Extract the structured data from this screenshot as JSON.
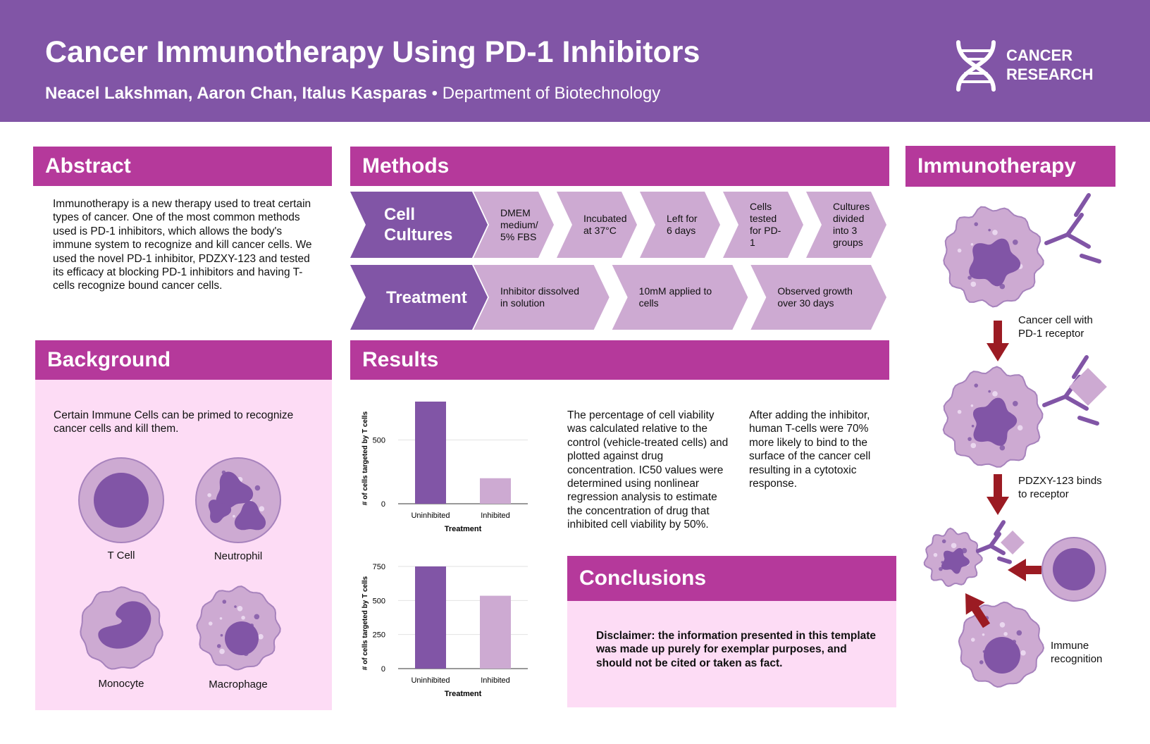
{
  "header": {
    "title": "Cancer Immunotherapy Using PD-1 Inhibitors",
    "authors": "Neacel Lakshman, Aaron Chan, Italus Kasparas",
    "separator": "•",
    "department": "Department of Biotechnology",
    "logo": [
      "CANCER",
      "RESEARCH"
    ]
  },
  "abstract": {
    "heading": "Abstract",
    "text": "Immunotherapy is a new therapy used to treat certain types of cancer. One of the most common methods used is PD-1 inhibitors, which allows the body's immune system to recognize and kill cancer cells. We used the novel PD-1 inhibitor, PDZXY-123 and tested its efficacy at blocking PD-1 inhibitors and having T-cells recognize bound cancer cells."
  },
  "methods": {
    "heading": "Methods",
    "rows": [
      {
        "label": "Cell Cultures",
        "steps": [
          "DMEM medium/ 5% FBS",
          "Incubated at 37°C",
          "Left for 6 days",
          "Cells tested for PD-1",
          "Cultures divided into 3 groups"
        ]
      },
      {
        "label": "Treatment",
        "steps": [
          "Inhibitor dissolved in solution",
          "10mM applied to cells",
          "Observed growth over 30 days"
        ]
      }
    ]
  },
  "background": {
    "heading": "Background",
    "text": "Certain Immune Cells can be primed to recognize cancer cells and kill them.",
    "cells": [
      "T Cell",
      "Neutrophil",
      "Monocyte",
      "Macrophage"
    ]
  },
  "results": {
    "heading": "Results",
    "paragraphs": [
      "The percentage of cell viability was calculated relative to the control (vehicle-treated cells) and plotted against drug concentration. IC50 values were determined using nonlinear regression analysis to estimate the concentration of drug that inhibited cell viability by 50%.",
      "After adding the inhibitor, human T-cells were 70% more likely to bind to the surface of the cancer cell resulting in a cytotoxic response."
    ]
  },
  "chart_data": [
    {
      "type": "bar",
      "categories": [
        "Uninhibited",
        "Inhibited"
      ],
      "values": [
        800,
        200
      ],
      "colors": [
        "#8155a6",
        "#cdaad2"
      ],
      "xlabel": "Treatment",
      "ylabel": "# of cells targeted by T cells",
      "ylim": [
        0,
        800
      ],
      "yticks": [
        0,
        500
      ],
      "grid": true
    },
    {
      "type": "bar",
      "categories": [
        "Uninhibited",
        "Inhibited"
      ],
      "values": [
        750,
        535
      ],
      "colors": [
        "#8155a6",
        "#cdaad2"
      ],
      "xlabel": "Treatment",
      "ylabel": "# of cells targeted by T cells",
      "ylim": [
        0,
        750
      ],
      "yticks": [
        0,
        250,
        500,
        750
      ],
      "grid": true
    }
  ],
  "conclusions": {
    "heading": "Conclusions",
    "text": "Disclaimer: the information presented in this template was made up purely for exemplar purposes, and should not be cited or taken as fact."
  },
  "immunotherapy": {
    "heading": "Immunotherapy",
    "captions": [
      "Cancer cell with PD-1 receptor",
      "PDZXY-123 binds to receptor",
      "Immune recognition"
    ]
  }
}
